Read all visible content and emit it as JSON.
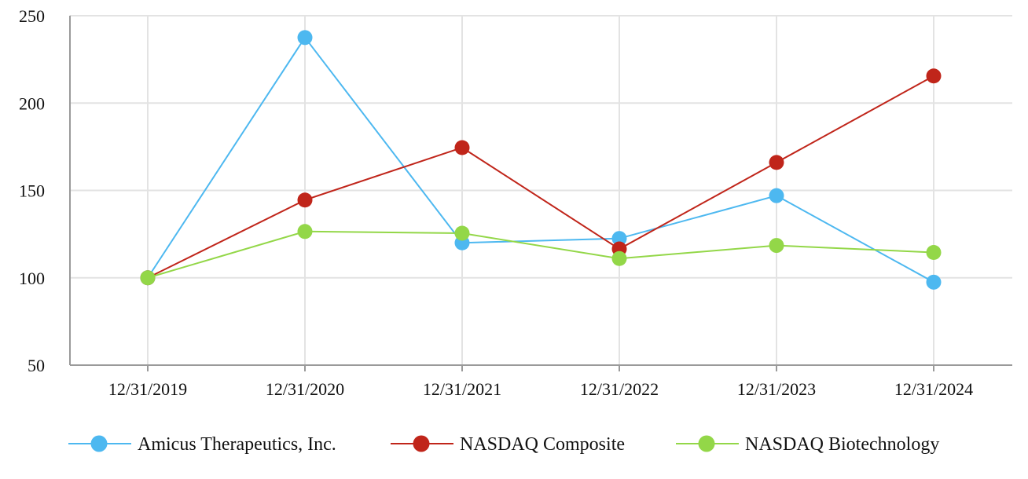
{
  "chart_data": {
    "type": "line",
    "categories": [
      "12/31/2019",
      "12/31/2020",
      "12/31/2021",
      "12/31/2022",
      "12/31/2023",
      "12/31/2024"
    ],
    "series": [
      {
        "name": "Amicus Therapeutics, Inc.",
        "color": "#4db8f0",
        "values": [
          100,
          237.5,
          120,
          122.5,
          147,
          97.5
        ]
      },
      {
        "name": "NASDAQ Composite",
        "color": "#c0251a",
        "values": [
          100,
          144.5,
          174.5,
          116.5,
          166,
          215.5
        ]
      },
      {
        "name": "NASDAQ Biotechnology",
        "color": "#93d748",
        "values": [
          100,
          126.5,
          125.5,
          111,
          118.5,
          114.5
        ]
      }
    ],
    "yticks": [
      50,
      100,
      150,
      200,
      250
    ],
    "ylim": [
      50,
      250
    ],
    "grid": true,
    "legend_position": "bottom"
  }
}
